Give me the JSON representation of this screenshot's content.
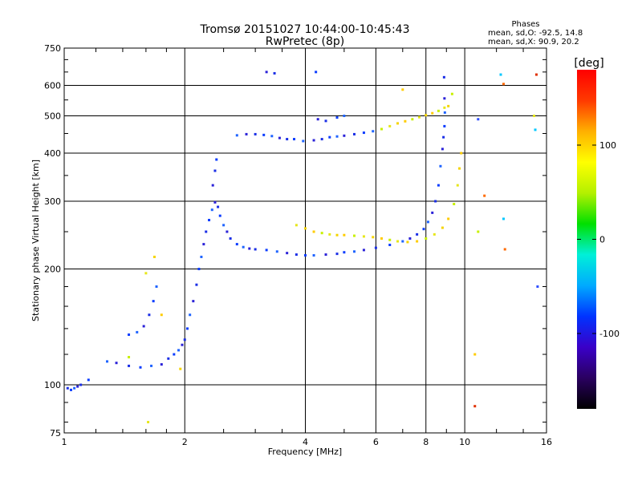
{
  "chart_data": {
    "type": "scatter",
    "title": "Tromsø 20151027 10:44:00-10:45:43",
    "subtitle": "RwPretec (8p)",
    "xlabel": "Frequency [MHz]",
    "ylabel": "Stationary phase Virtual Height [km]",
    "x_scale": "log",
    "y_scale": "log",
    "xlim": [
      1,
      16
    ],
    "ylim": [
      75,
      750
    ],
    "x_ticks": [
      1,
      2,
      4,
      6,
      8,
      10,
      16
    ],
    "y_ticks": [
      75,
      100,
      200,
      300,
      400,
      500,
      600,
      750
    ],
    "grid": true,
    "stats": {
      "heading": "Phases",
      "line_o": "mean, sd,O: -92.5, 14.8",
      "line_x": "mean, sd,X:  90.9, 20.2"
    },
    "colorbar": {
      "label": "[deg]",
      "range": [
        -180,
        180
      ],
      "ticks": [
        100,
        0,
        -100
      ],
      "colormap": [
        "#000000",
        "#2a0060",
        "#3a00c8",
        "#0033ff",
        "#00aaff",
        "#00f0d8",
        "#00e000",
        "#b4f000",
        "#ffff00",
        "#ffb000",
        "#ff3a00",
        "#ff0000"
      ]
    },
    "series": [
      {
        "points": [
          [
            1.02,
            98
          ],
          [
            1.04,
            97
          ],
          [
            1.06,
            98
          ],
          [
            1.08,
            99
          ],
          [
            1.1,
            100
          ],
          [
            1.15,
            103
          ],
          [
            1.28,
            115
          ],
          [
            1.35,
            114
          ],
          [
            1.45,
            112
          ],
          [
            1.55,
            111
          ],
          [
            1.65,
            112
          ],
          [
            1.75,
            113
          ],
          [
            1.82,
            117
          ],
          [
            1.88,
            120
          ],
          [
            1.93,
            123
          ],
          [
            1.97,
            127
          ],
          [
            2.0,
            131
          ],
          [
            2.03,
            140
          ],
          [
            2.06,
            152
          ],
          [
            2.1,
            165
          ],
          [
            2.14,
            182
          ],
          [
            2.17,
            200
          ],
          [
            2.2,
            215
          ],
          [
            2.23,
            232
          ],
          [
            2.26,
            250
          ],
          [
            2.3,
            268
          ],
          [
            2.34,
            285
          ],
          [
            2.38,
            298
          ],
          [
            2.42,
            290
          ],
          [
            2.45,
            275
          ],
          [
            2.5,
            260
          ],
          [
            2.55,
            250
          ],
          [
            2.6,
            240
          ],
          [
            2.7,
            232
          ],
          [
            2.8,
            228
          ],
          [
            2.9,
            226
          ],
          [
            3.0,
            225
          ],
          [
            3.2,
            224
          ],
          [
            3.4,
            222
          ],
          [
            3.6,
            220
          ],
          [
            3.8,
            218
          ],
          [
            4.0,
            217
          ],
          [
            4.2,
            217
          ],
          [
            4.5,
            218
          ],
          [
            4.8,
            219
          ],
          [
            5.0,
            221
          ],
          [
            5.3,
            222
          ],
          [
            5.6,
            224
          ],
          [
            6.0,
            227
          ],
          [
            6.5,
            231
          ],
          [
            7.0,
            236
          ],
          [
            7.3,
            240
          ],
          [
            7.6,
            246
          ],
          [
            7.9,
            254
          ],
          [
            8.1,
            265
          ],
          [
            8.3,
            280
          ],
          [
            8.45,
            300
          ],
          [
            8.6,
            330
          ],
          [
            8.7,
            370
          ],
          [
            8.8,
            410
          ],
          [
            8.85,
            440
          ],
          [
            8.9,
            470
          ],
          [
            8.92,
            510
          ],
          [
            8.9,
            555
          ],
          [
            8.88,
            630
          ],
          [
            1.45,
            135
          ],
          [
            1.52,
            137
          ],
          [
            1.58,
            142
          ],
          [
            1.63,
            152
          ],
          [
            1.67,
            165
          ],
          [
            1.7,
            180
          ],
          [
            2.35,
            330
          ],
          [
            2.38,
            360
          ],
          [
            2.4,
            385
          ],
          [
            2.7,
            445
          ],
          [
            2.85,
            448
          ],
          [
            3.0,
            448
          ],
          [
            3.15,
            446
          ],
          [
            3.3,
            443
          ],
          [
            3.45,
            438
          ],
          [
            3.6,
            435
          ],
          [
            3.75,
            435
          ],
          [
            3.95,
            430
          ],
          [
            4.2,
            432
          ],
          [
            4.4,
            435
          ],
          [
            4.6,
            440
          ],
          [
            4.8,
            442
          ],
          [
            5.0,
            444
          ],
          [
            5.3,
            448
          ],
          [
            5.6,
            452
          ],
          [
            5.9,
            456
          ],
          [
            4.3,
            490
          ],
          [
            4.5,
            485
          ],
          [
            4.8,
            495
          ],
          [
            5.0,
            500
          ],
          [
            3.2,
            650
          ],
          [
            3.35,
            645
          ],
          [
            4.25,
            650
          ]
        ]
      },
      {
        "points": [
          [
            3.8,
            260
          ],
          [
            4.0,
            255
          ],
          [
            4.2,
            250
          ],
          [
            4.4,
            248
          ],
          [
            4.6,
            246
          ],
          [
            4.8,
            245
          ],
          [
            5.0,
            245
          ],
          [
            5.3,
            244
          ],
          [
            5.6,
            243
          ],
          [
            5.9,
            242
          ],
          [
            6.2,
            240
          ],
          [
            6.5,
            238
          ],
          [
            6.8,
            236
          ],
          [
            7.2,
            235
          ],
          [
            7.6,
            236
          ],
          [
            8.0,
            240
          ],
          [
            8.4,
            246
          ],
          [
            8.8,
            256
          ],
          [
            9.1,
            270
          ],
          [
            9.4,
            295
          ],
          [
            9.6,
            330
          ],
          [
            9.7,
            365
          ],
          [
            9.8,
            400
          ],
          [
            6.2,
            462
          ],
          [
            6.5,
            470
          ],
          [
            6.8,
            478
          ],
          [
            7.1,
            484
          ],
          [
            7.4,
            490
          ],
          [
            7.7,
            496
          ],
          [
            8.0,
            502
          ],
          [
            8.3,
            508
          ],
          [
            8.6,
            515
          ],
          [
            8.9,
            525
          ],
          [
            9.1,
            530
          ],
          [
            7.0,
            585
          ],
          [
            9.3,
            570
          ],
          [
            1.6,
            195
          ],
          [
            1.68,
            215
          ],
          [
            1.75,
            152
          ],
          [
            1.45,
            118
          ],
          [
            1.62,
            80
          ],
          [
            1.95,
            110
          ],
          [
            10.6,
            120
          ],
          [
            10.8,
            250
          ],
          [
            14.9,
            500
          ]
        ]
      },
      {
        "points": [
          [
            12.5,
            605
          ],
          [
            12.3,
            640
          ],
          [
            10.8,
            490
          ],
          [
            10.6,
            88
          ],
          [
            11.2,
            310
          ],
          [
            15.0,
            460
          ],
          [
            15.2,
            180
          ],
          [
            15.1,
            640
          ],
          [
            12.6,
            225
          ],
          [
            12.5,
            270
          ]
        ]
      }
    ]
  }
}
